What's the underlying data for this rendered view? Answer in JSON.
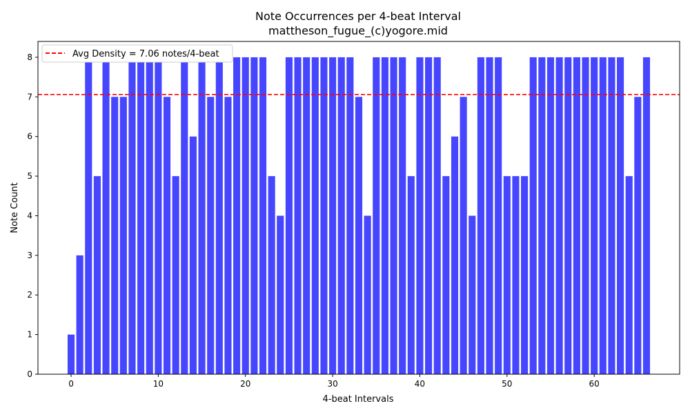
{
  "chart_data": {
    "type": "bar",
    "title": "Note Occurrences per 4-beat Interval",
    "subtitle": "mattheson_fugue_(c)yogore.mid",
    "xlabel": "4-beat Intervals",
    "ylabel": "Note Count",
    "x": [
      0,
      1,
      2,
      3,
      4,
      5,
      6,
      7,
      8,
      9,
      10,
      11,
      12,
      13,
      14,
      15,
      16,
      17,
      18,
      19,
      20,
      21,
      22,
      23,
      24,
      25,
      26,
      27,
      28,
      29,
      30,
      31,
      32,
      33,
      34,
      35,
      36,
      37,
      38,
      39,
      40,
      41,
      42,
      43,
      44,
      45,
      46,
      47,
      48,
      49,
      50,
      51,
      52,
      53,
      54,
      55,
      56,
      57,
      58,
      59,
      60,
      61,
      62,
      63,
      64,
      65,
      66
    ],
    "values": [
      1,
      3,
      8,
      5,
      8,
      7,
      7,
      8,
      8,
      8,
      8,
      7,
      5,
      8,
      6,
      8,
      7,
      8,
      7,
      8,
      8,
      8,
      8,
      5,
      4,
      8,
      8,
      8,
      8,
      8,
      8,
      8,
      8,
      7,
      4,
      8,
      8,
      8,
      8,
      5,
      8,
      8,
      8,
      5,
      6,
      7,
      4,
      8,
      8,
      8,
      5,
      5,
      5,
      8,
      8,
      8,
      8,
      8,
      8,
      8,
      8,
      8,
      8,
      8,
      5,
      7,
      8
    ],
    "xticks": [
      0,
      10,
      20,
      30,
      40,
      50,
      60
    ],
    "yticks": [
      0,
      1,
      2,
      3,
      4,
      5,
      6,
      7,
      8
    ],
    "xlim": [
      -3.8,
      69.8
    ],
    "ylim": [
      0,
      8.4
    ],
    "bar_color": "#4646ff",
    "average_line": {
      "value": 7.06,
      "label": "Avg Density = 7.06 notes/4-beat",
      "color": "#ff0000"
    },
    "legend_position": "top-left",
    "grid": false
  }
}
